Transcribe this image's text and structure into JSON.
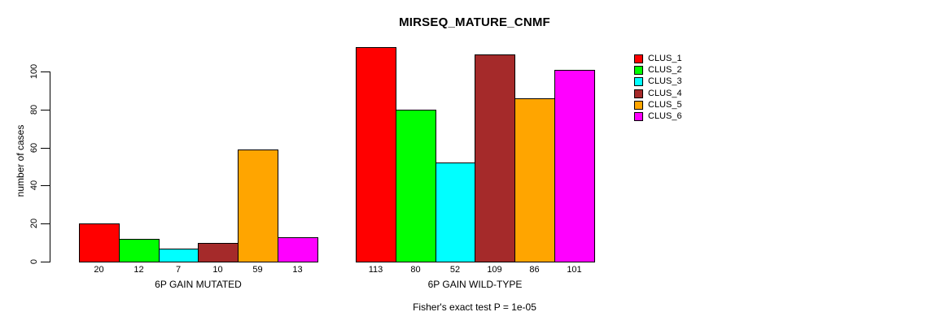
{
  "chart_data": {
    "type": "bar",
    "title": "MIRSEQ_MATURE_CNMF",
    "ylabel": "number of cases",
    "xlabel": "",
    "ylim": [
      0,
      113
    ],
    "yticks": [
      0,
      20,
      40,
      60,
      80,
      100
    ],
    "grid": false,
    "series_names": [
      "CLUS_1",
      "CLUS_2",
      "CLUS_3",
      "CLUS_4",
      "CLUS_5",
      "CLUS_6"
    ],
    "series_colors": [
      "#FF0000",
      "#00FF00",
      "#00FFFF",
      "#A52A2A",
      "#FFA500",
      "#FF00FF"
    ],
    "groups": [
      {
        "label": "6P GAIN MUTATED",
        "values": [
          20,
          12,
          7,
          10,
          59,
          13
        ]
      },
      {
        "label": "6P GAIN WILD-TYPE",
        "values": [
          113,
          80,
          52,
          109,
          86,
          101
        ]
      }
    ],
    "bar_value_labels_shown": true,
    "legend": {
      "position": "right",
      "entries": [
        {
          "label": "CLUS_1",
          "color": "#FF0000"
        },
        {
          "label": "CLUS_2",
          "color": "#00FF00"
        },
        {
          "label": "CLUS_3",
          "color": "#00FFFF"
        },
        {
          "label": "CLUS_4",
          "color": "#A52A2A"
        },
        {
          "label": "CLUS_5",
          "color": "#FFA500"
        },
        {
          "label": "CLUS_6",
          "color": "#FF00FF"
        }
      ]
    },
    "annotation": "Fisher's exact test P = 1e-05",
    "axis_color": "#000000",
    "background_color": "#FFFFFF"
  }
}
